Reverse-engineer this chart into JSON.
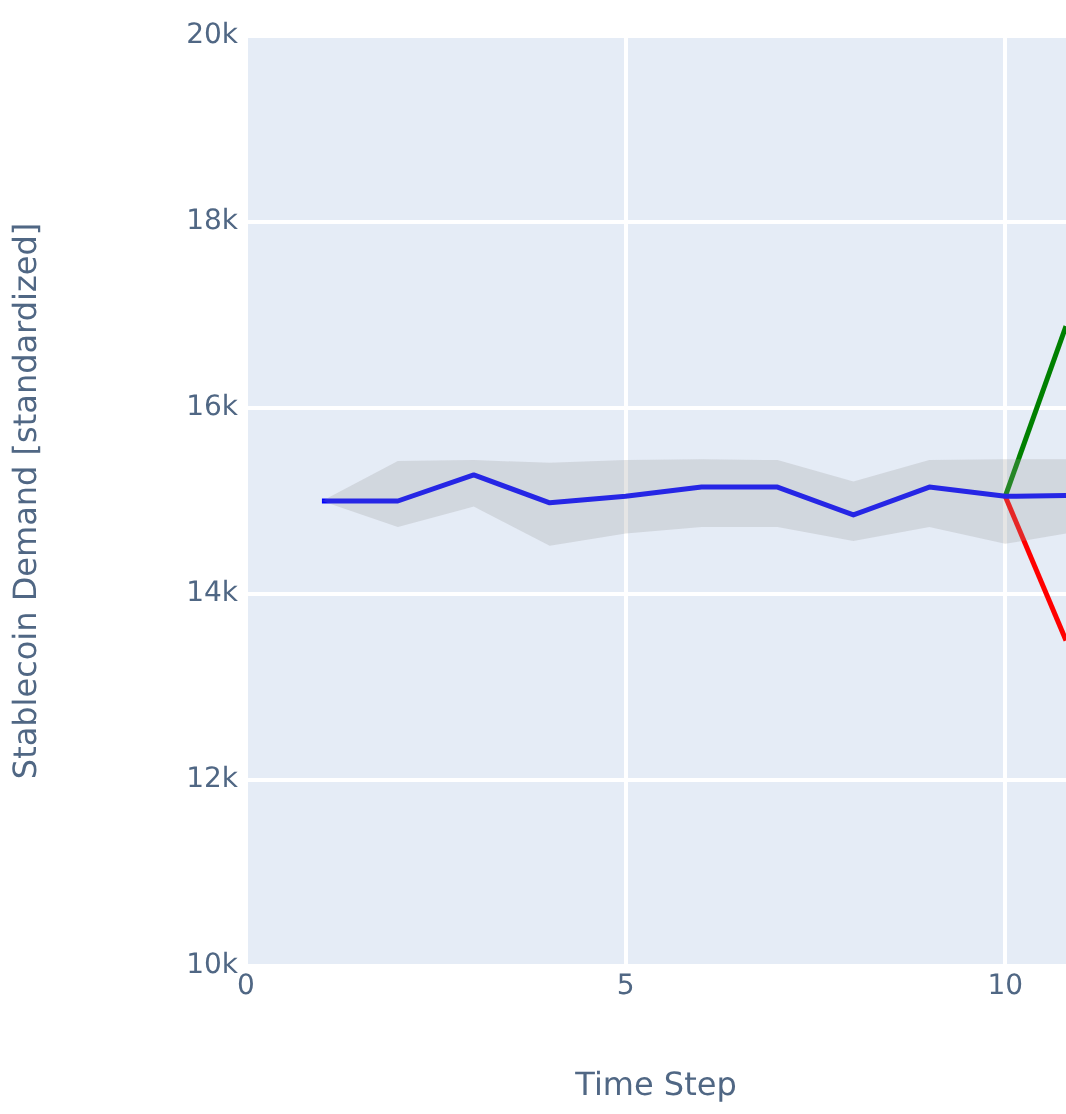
{
  "chart_data": {
    "type": "line",
    "xlabel": "Time Step",
    "ylabel": "Stablecoin Demand [standardized]",
    "xlim": [
      0,
      10.8
    ],
    "xticks": [
      0,
      5,
      10
    ],
    "ylim": [
      10000,
      20000
    ],
    "yticks": [
      {
        "value": 10000,
        "label": "10k"
      },
      {
        "value": 12000,
        "label": "12k"
      },
      {
        "value": 14000,
        "label": "14k"
      },
      {
        "value": 16000,
        "label": "16k"
      },
      {
        "value": 18000,
        "label": "18k"
      },
      {
        "value": 20000,
        "label": "20k"
      }
    ],
    "grid": true,
    "legend": false,
    "marker": "none",
    "line_style": "solid",
    "series": [
      {
        "color": "#0000ff",
        "x": [
          1,
          2,
          3,
          4,
          5,
          6,
          7,
          8,
          9,
          10,
          10.8
        ],
        "values": [
          15000,
          15000,
          15280,
          14980,
          15050,
          15150,
          15150,
          14850,
          15150,
          15050,
          15060
        ],
        "lower": [
          15000,
          14720,
          14940,
          14520,
          14650,
          14720,
          14720,
          14570,
          14720,
          14540,
          14650
        ],
        "upper": [
          15000,
          15430,
          15440,
          15410,
          15440,
          15450,
          15440,
          15210,
          15440,
          15450,
          15450
        ]
      },
      {
        "color": "#008000",
        "x": [
          10,
          10.8
        ],
        "values": [
          15050,
          16880
        ]
      },
      {
        "color": "#ff0000",
        "x": [
          10,
          10.8
        ],
        "values": [
          15050,
          13500
        ]
      }
    ]
  }
}
